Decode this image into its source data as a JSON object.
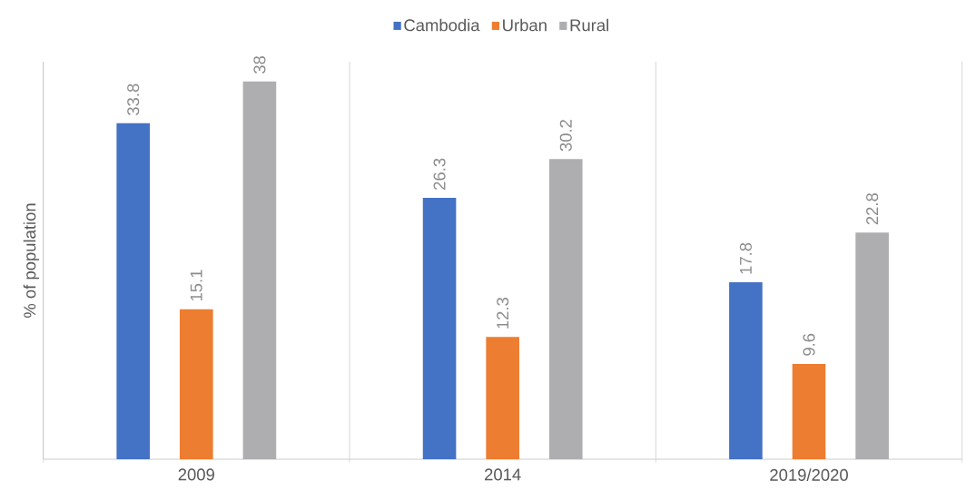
{
  "chart_data": {
    "type": "bar",
    "ylabel": "% of population",
    "categories": [
      "2009",
      "2014",
      "2019/2020"
    ],
    "series": [
      {
        "name": "Cambodia",
        "color": "#4472c4",
        "values": [
          33.8,
          26.3,
          17.8
        ]
      },
      {
        "name": "Urban",
        "color": "#ed7d31",
        "values": [
          15.1,
          12.3,
          9.6
        ]
      },
      {
        "name": "Rural",
        "color": "#aeaeb1",
        "values": [
          38,
          30.2,
          22.8
        ]
      }
    ],
    "ylim": [
      0,
      40
    ],
    "data_labels": true,
    "legend": "top",
    "grid": "x",
    "tick_labels": "x"
  }
}
